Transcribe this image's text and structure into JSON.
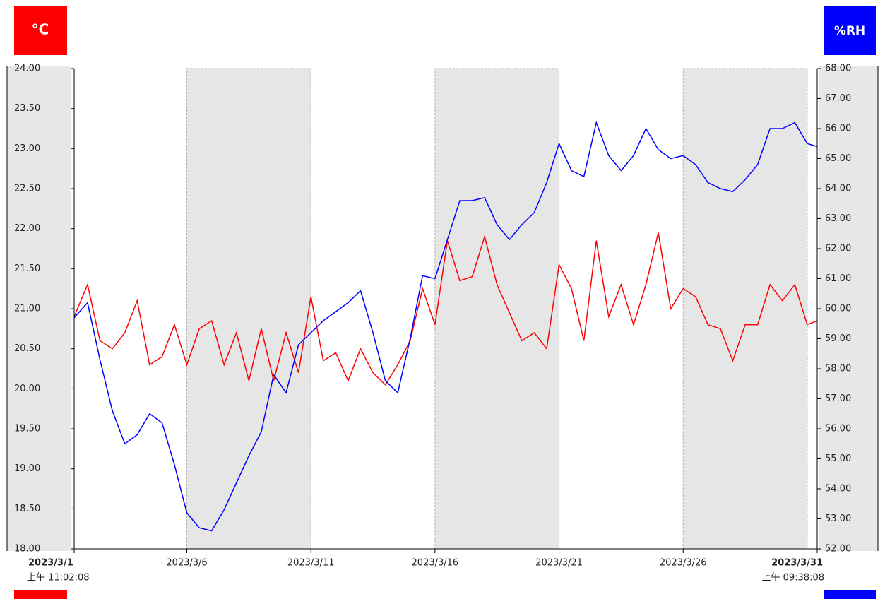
{
  "chart_data": {
    "type": "line",
    "y_unit": "°C",
    "y2_unit": "%RH",
    "start_label": {
      "date": "2023/3/1",
      "time": "上午 11:02:08"
    },
    "end_label": {
      "date": "2023/3/31",
      "time": "上午 09:38:08"
    },
    "xlim": [
      "2023/3/1 11:02:08",
      "2023/3/31 09:38:08"
    ],
    "xticks": [
      "2023/3/6",
      "2023/3/11",
      "2023/3/16",
      "2023/3/21",
      "2023/3/26"
    ],
    "shaded": [
      [
        "2023/3/6",
        "2023/3/11"
      ],
      [
        "2023/3/16",
        "2023/3/21"
      ],
      [
        "2023/3/26",
        "2023/3/31"
      ]
    ],
    "ylim": [
      18,
      24
    ],
    "yticks": [
      {
        "value": 18,
        "label": "18.00"
      },
      {
        "value": 18.5,
        "label": "18.50"
      },
      {
        "value": 19,
        "label": "19.00"
      },
      {
        "value": 19.5,
        "label": "19.50"
      },
      {
        "value": 20,
        "label": "20.00"
      },
      {
        "value": 20.5,
        "label": "20.50"
      },
      {
        "value": 21,
        "label": "21.00"
      },
      {
        "value": 21.5,
        "label": "21.50"
      },
      {
        "value": 22,
        "label": "22.00"
      },
      {
        "value": 22.5,
        "label": "22.50"
      },
      {
        "value": 23,
        "label": "23.00"
      },
      {
        "value": 23.5,
        "label": "23.50"
      },
      {
        "value": 24,
        "label": "24.00"
      }
    ],
    "y2lim": [
      52,
      68
    ],
    "y2ticks": [
      {
        "value": 52,
        "label": "52.00"
      },
      {
        "value": 53,
        "label": "53.00"
      },
      {
        "value": 54,
        "label": "54.00"
      },
      {
        "value": 55,
        "label": "55.00"
      },
      {
        "value": 56,
        "label": "56.00"
      },
      {
        "value": 57,
        "label": "57.00"
      },
      {
        "value": 58,
        "label": "58.00"
      },
      {
        "value": 59,
        "label": "59.00"
      },
      {
        "value": 60,
        "label": "60.00"
      },
      {
        "value": 61,
        "label": "61.00"
      },
      {
        "value": 62,
        "label": "62.00"
      },
      {
        "value": 63,
        "label": "63.00"
      },
      {
        "value": 64,
        "label": "64.00"
      },
      {
        "value": 65,
        "label": "65.00"
      },
      {
        "value": 66,
        "label": "66.00"
      },
      {
        "value": 67,
        "label": "67.00"
      },
      {
        "value": 68,
        "label": "68.00"
      }
    ],
    "x": [
      "2023/3/1 11:02:08",
      "2023/3/2 00:00",
      "2023/3/2 12:00",
      "2023/3/3 00:00",
      "2023/3/3 12:00",
      "2023/3/4 00:00",
      "2023/3/4 12:00",
      "2023/3/5 00:00",
      "2023/3/5 12:00",
      "2023/3/6 00:00",
      "2023/3/6 12:00",
      "2023/3/7 00:00",
      "2023/3/7 12:00",
      "2023/3/8 00:00",
      "2023/3/8 12:00",
      "2023/3/9 00:00",
      "2023/3/9 12:00",
      "2023/3/10 00:00",
      "2023/3/10 12:00",
      "2023/3/11 00:00",
      "2023/3/11 12:00",
      "2023/3/12 00:00",
      "2023/3/12 12:00",
      "2023/3/13 00:00",
      "2023/3/13 12:00",
      "2023/3/14 00:00",
      "2023/3/14 12:00",
      "2023/3/15 00:00",
      "2023/3/15 12:00",
      "2023/3/16 00:00",
      "2023/3/16 12:00",
      "2023/3/17 00:00",
      "2023/3/17 12:00",
      "2023/3/18 00:00",
      "2023/3/18 12:00",
      "2023/3/19 00:00",
      "2023/3/19 12:00",
      "2023/3/20 00:00",
      "2023/3/20 12:00",
      "2023/3/21 00:00",
      "2023/3/21 12:00",
      "2023/3/22 00:00",
      "2023/3/22 12:00",
      "2023/3/23 00:00",
      "2023/3/23 12:00",
      "2023/3/24 00:00",
      "2023/3/24 12:00",
      "2023/3/25 00:00",
      "2023/3/25 12:00",
      "2023/3/26 00:00",
      "2023/3/26 12:00",
      "2023/3/27 00:00",
      "2023/3/27 12:00",
      "2023/3/28 00:00",
      "2023/3/28 12:00",
      "2023/3/29 00:00",
      "2023/3/29 12:00",
      "2023/3/30 00:00",
      "2023/3/30 12:00",
      "2023/3/31 00:00",
      "2023/3/31 09:38:08"
    ],
    "series": [
      {
        "color": "#ff0000",
        "axis": "y",
        "values": [
          20.9,
          21.3,
          20.6,
          20.5,
          20.7,
          21.1,
          20.3,
          20.4,
          20.8,
          20.3,
          20.75,
          20.85,
          20.3,
          20.7,
          20.1,
          20.75,
          20.1,
          20.7,
          20.2,
          21.15,
          20.35,
          20.45,
          20.1,
          20.5,
          20.2,
          20.05,
          20.3,
          20.6,
          21.25,
          20.8,
          21.85,
          21.35,
          21.4,
          21.9,
          21.3,
          20.95,
          20.6,
          20.7,
          20.5,
          21.55,
          21.25,
          20.6,
          21.85,
          20.9,
          21.3,
          20.8,
          21.3,
          21.95,
          21.0,
          21.25,
          21.15,
          20.8,
          20.75,
          20.35,
          20.8,
          20.8,
          21.3,
          21.1,
          21.3,
          20.8,
          20.85
        ]
      },
      {
        "color": "#0000ff",
        "axis": "y2",
        "values": [
          59.7,
          60.2,
          58.3,
          56.6,
          55.5,
          55.8,
          56.5,
          56.2,
          54.8,
          53.2,
          52.7,
          52.6,
          53.3,
          54.2,
          55.1,
          55.9,
          57.8,
          57.2,
          58.8,
          59.2,
          59.6,
          59.9,
          60.2,
          60.6,
          59.2,
          57.6,
          57.2,
          59.0,
          61.1,
          61.0,
          62.3,
          63.6,
          63.6,
          63.7,
          62.8,
          62.3,
          62.8,
          63.2,
          64.2,
          65.5,
          64.6,
          64.4,
          66.2,
          65.1,
          64.6,
          65.1,
          66.0,
          65.3,
          65.0,
          65.1,
          64.8,
          64.2,
          64.0,
          63.9,
          64.3,
          64.8,
          66.0,
          66.0,
          66.2,
          65.5,
          65.4
        ]
      }
    ]
  }
}
